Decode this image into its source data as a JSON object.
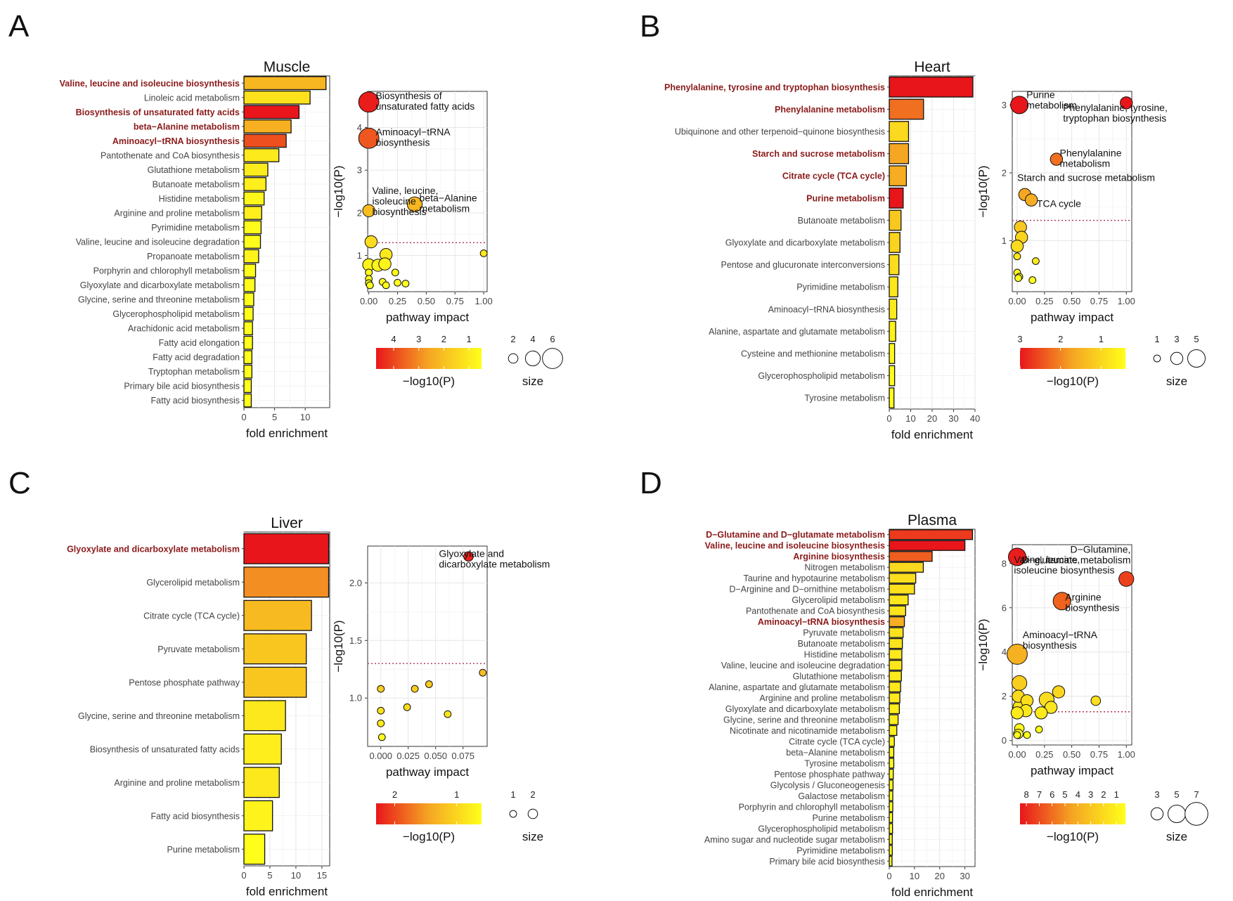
{
  "colors": {
    "low": "#ffff1a",
    "mid": "#f5a623",
    "high": "#e8161b",
    "threshold": "#b03050",
    "highlight_text": "#8b1a1a"
  },
  "chart_data": [
    {
      "panel": "A",
      "type": "bar",
      "title": "Muscle",
      "xlabel": "fold enrichment",
      "xlim": [
        0,
        14
      ],
      "xticks": [
        0,
        5,
        10
      ],
      "categories": [
        "Valine, leucine and isoleucine biosynthesis",
        "Linoleic acid metabolism",
        "Biosynthesis of unsaturated fatty acids",
        "beta−Alanine metabolism",
        "Aminoacyl−tRNA biosynthesis",
        "Pantothenate and CoA biosynthesis",
        "Glutathione metabolism",
        "Butanoate metabolism",
        "Histidine metabolism",
        "Arginine and proline metabolism",
        "Pyrimidine metabolism",
        "Valine, leucine and isoleucine degradation",
        "Propanoate metabolism",
        "Porphyrin and chlorophyll metabolism",
        "Glyoxylate and dicarboxylate metabolism",
        "Glycine, serine and threonine metabolism",
        "Glycerophospholipid metabolism",
        "Arachidonic acid metabolism",
        "Fatty acid elongation",
        "Fatty acid degradation",
        "Tryptophan metabolism",
        "Primary bile acid biosynthesis",
        "Fatty acid biosynthesis"
      ],
      "values": [
        13.4,
        10.8,
        9.0,
        7.7,
        6.9,
        5.7,
        3.9,
        3.6,
        3.3,
        2.9,
        2.8,
        2.7,
        2.4,
        1.9,
        1.8,
        1.6,
        1.5,
        1.4,
        1.4,
        1.3,
        1.3,
        1.2,
        1.2
      ],
      "neglogp": [
        2.05,
        1.0,
        4.6,
        2.2,
        3.75,
        0.8,
        0.75,
        0.7,
        0.5,
        0.7,
        0.4,
        0.35,
        0.6,
        0.35,
        0.4,
        0.35,
        0.35,
        0.3,
        0.3,
        0.3,
        0.3,
        0.3,
        0.3
      ],
      "highlighted": [
        0,
        2,
        3,
        4
      ],
      "bubble": {
        "xlabel": "pathway impact",
        "ylabel": "−log10(P)",
        "xlim": [
          -0.01,
          1.03
        ],
        "ylim": [
          0.15,
          4.85
        ],
        "xticks": [
          0,
          0.25,
          0.5,
          0.75,
          1
        ],
        "xtick_labels": [
          "0.00",
          "0.25",
          "0.50",
          "0.75",
          "1.00"
        ],
        "yticks": [
          1,
          2,
          3,
          4
        ],
        "threshold": 1.3,
        "points": [
          {
            "x": 0.0,
            "y": 4.6,
            "size": 6,
            "p": 4.6
          },
          {
            "x": 0.0,
            "y": 3.75,
            "size": 6,
            "p": 3.75
          },
          {
            "x": 0.0,
            "y": 2.05,
            "size": 3,
            "p": 2.05
          },
          {
            "x": 0.4,
            "y": 2.2,
            "size": 4,
            "p": 2.2
          },
          {
            "x": 0.02,
            "y": 1.32,
            "size": 3,
            "p": 1.32
          },
          {
            "x": 1.0,
            "y": 1.05,
            "size": 1,
            "p": 1.05
          },
          {
            "x": 0.15,
            "y": 1.02,
            "size": 3,
            "p": 1.02
          },
          {
            "x": 0.0,
            "y": 0.78,
            "size": 3,
            "p": 0.78
          },
          {
            "x": 0.08,
            "y": 0.77,
            "size": 3,
            "p": 0.77
          },
          {
            "x": 0.14,
            "y": 0.8,
            "size": 3,
            "p": 0.8
          },
          {
            "x": 0.23,
            "y": 0.6,
            "size": 1,
            "p": 0.6
          },
          {
            "x": 0.0,
            "y": 0.6,
            "size": 1,
            "p": 0.6
          },
          {
            "x": 0.0,
            "y": 0.45,
            "size": 1,
            "p": 0.45
          },
          {
            "x": 0.0,
            "y": 0.35,
            "size": 1,
            "p": 0.35
          },
          {
            "x": 0.01,
            "y": 0.3,
            "size": 1,
            "p": 0.3
          },
          {
            "x": 0.12,
            "y": 0.38,
            "size": 1,
            "p": 0.38
          },
          {
            "x": 0.15,
            "y": 0.3,
            "size": 1,
            "p": 0.3
          },
          {
            "x": 0.25,
            "y": 0.36,
            "size": 1,
            "p": 0.36
          },
          {
            "x": 0.32,
            "y": 0.34,
            "size": 1,
            "p": 0.34
          }
        ],
        "annotations": [
          {
            "text": "Biosynthesis of\nunsaturated fatty acids",
            "x": 0.06,
            "y": 4.6
          },
          {
            "text": "Aminoacyl−tRNA\nbiosynthesis",
            "x": 0.06,
            "y": 3.75
          },
          {
            "text": "Valine, leucine,\nisoleucine\nbiosynthesis",
            "x": 0.03,
            "y": 2.38
          },
          {
            "text": "beta−Alanine\nmetabolism",
            "x": 0.44,
            "y": 2.2
          }
        ],
        "color_legend": {
          "title": "−log10(P)",
          "min": 0.5,
          "max": 4.7,
          "ticks": [
            4,
            3,
            2,
            1
          ]
        },
        "size_legend": {
          "title": "size",
          "values": [
            2,
            4,
            6
          ]
        }
      }
    },
    {
      "panel": "B",
      "type": "bar",
      "title": "Heart",
      "xlabel": "fold enrichment",
      "xlim": [
        0,
        40
      ],
      "xticks": [
        0,
        10,
        20,
        30,
        40
      ],
      "categories": [
        "Phenylalanine, tyrosine and tryptophan biosynthesis",
        "Phenylalanine metabolism",
        "Ubiquinone and other terpenoid−quinone biosynthesis",
        "Starch and sucrose metabolism",
        "Citrate cycle (TCA cycle)",
        "Purine metabolism",
        "Butanoate metabolism",
        "Glyoxylate and dicarboxylate metabolism",
        "Pentose and glucuronate interconversions",
        "Pyrimidine metabolism",
        "Aminoacyl−tRNA biosynthesis",
        "Alanine, aspartate and glutamate metabolism",
        "Cysteine and methionine metabolism",
        "Glycerophospholipid metabolism",
        "Tyrosine metabolism"
      ],
      "values": [
        39,
        16,
        9,
        9,
        8,
        6.5,
        5.5,
        5,
        4.5,
        4,
        3.5,
        3,
        2.5,
        2.5,
        2.2
      ],
      "neglogp": [
        3.0,
        2.2,
        0.95,
        1.68,
        1.6,
        3.0,
        1.2,
        1.05,
        0.9,
        0.75,
        0.7,
        0.6,
        0.5,
        0.45,
        0.4
      ],
      "highlighted": [
        0,
        1,
        3,
        4,
        5
      ],
      "bubble": {
        "xlabel": "pathway impact",
        "ylabel": "−log10(P)",
        "xlim": [
          -0.045,
          1.05
        ],
        "ylim": [
          0.25,
          3.2
        ],
        "xticks": [
          0,
          0.25,
          0.5,
          0.75,
          1
        ],
        "xtick_labels": [
          "0.00",
          "0.25",
          "0.50",
          "0.75",
          "1.00"
        ],
        "yticks": [
          1,
          2,
          3
        ],
        "threshold": 1.3,
        "points": [
          {
            "x": 0.02,
            "y": 3.0,
            "size": 5,
            "p": 3.0
          },
          {
            "x": 1.0,
            "y": 3.03,
            "size": 3,
            "p": 3.03
          },
          {
            "x": 0.36,
            "y": 2.2,
            "size": 3,
            "p": 2.2
          },
          {
            "x": 0.07,
            "y": 1.68,
            "size": 3,
            "p": 1.68
          },
          {
            "x": 0.13,
            "y": 1.6,
            "size": 3,
            "p": 1.6
          },
          {
            "x": 0.03,
            "y": 1.2,
            "size": 3,
            "p": 1.2
          },
          {
            "x": 0.04,
            "y": 1.05,
            "size": 3,
            "p": 1.05
          },
          {
            "x": 0.0,
            "y": 0.92,
            "size": 3,
            "p": 0.92
          },
          {
            "x": 0.0,
            "y": 0.77,
            "size": 1,
            "p": 0.77
          },
          {
            "x": 0.17,
            "y": 0.7,
            "size": 1,
            "p": 0.7
          },
          {
            "x": 0.0,
            "y": 0.53,
            "size": 1,
            "p": 0.53
          },
          {
            "x": 0.02,
            "y": 0.47,
            "size": 1,
            "p": 0.47
          },
          {
            "x": 0.01,
            "y": 0.45,
            "size": 1,
            "p": 0.45
          },
          {
            "x": 0.14,
            "y": 0.42,
            "size": 1,
            "p": 0.42
          }
        ],
        "annotations": [
          {
            "text": "Purine\nmetabolism",
            "x": 0.085,
            "y": 3.06
          },
          {
            "text": "Phenylalanine, tyrosine,\ntryptophan biosynthesis",
            "x": 0.42,
            "y": 2.87
          },
          {
            "text": "Phenylalanine\nmetabolism",
            "x": 0.39,
            "y": 2.2
          },
          {
            "text": "Starch and sucrose metabolism",
            "x": 0.0,
            "y": 1.93
          },
          {
            "text": "TCA cycle",
            "x": 0.18,
            "y": 1.55
          }
        ],
        "color_legend": {
          "title": "−log10(P)",
          "min": 0.4,
          "max": 3.0,
          "ticks": [
            3,
            2,
            1
          ]
        },
        "size_legend": {
          "title": "size",
          "values": [
            1,
            3,
            5
          ]
        }
      }
    },
    {
      "panel": "C",
      "type": "bar",
      "title": "Liver",
      "xlabel": "fold enrichment",
      "xlim": [
        0,
        16.5
      ],
      "xticks": [
        0,
        5,
        10,
        15
      ],
      "categories": [
        "Glyoxylate and dicarboxylate metabolism",
        "Glycerolipid metabolism",
        "Citrate cycle (TCA cycle)",
        "Pyruvate metabolism",
        "Pentose phosphate pathway",
        "Glycine, serine and threonine metabolism",
        "Biosynthesis of unsaturated fatty acids",
        "Arginine and proline metabolism",
        "Fatty acid biosynthesis",
        "Purine metabolism"
      ],
      "values": [
        16.3,
        16.3,
        13.0,
        12.0,
        12.0,
        8.0,
        7.2,
        6.8,
        5.5,
        4.0
      ],
      "neglogp": [
        2.25,
        1.6,
        1.3,
        1.2,
        1.2,
        0.9,
        0.85,
        0.9,
        0.8,
        0.7
      ],
      "highlighted": [
        0
      ],
      "bubble": {
        "xlabel": "pathway impact",
        "ylabel": "−log10(P)",
        "xlim": [
          -0.012,
          0.097
        ],
        "ylim": [
          0.58,
          2.32
        ],
        "xticks": [
          0,
          0.025,
          0.05,
          0.075
        ],
        "xtick_labels": [
          "0.000",
          "0.025",
          "0.050",
          "0.075"
        ],
        "yticks": [
          1.0,
          1.5,
          2.0
        ],
        "ytick_labels": [
          "1.0",
          "1.5",
          "2.0"
        ],
        "threshold": 1.3,
        "points": [
          {
            "x": 0.08,
            "y": 2.23,
            "size": 2,
            "p": 2.23
          },
          {
            "x": 0.093,
            "y": 1.22,
            "size": 1,
            "p": 1.22
          },
          {
            "x": 0.044,
            "y": 1.12,
            "size": 1,
            "p": 1.12
          },
          {
            "x": 0.031,
            "y": 1.08,
            "size": 1,
            "p": 1.08
          },
          {
            "x": 0.0,
            "y": 1.08,
            "size": 1,
            "p": 1.08
          },
          {
            "x": 0.024,
            "y": 0.92,
            "size": 1,
            "p": 0.92
          },
          {
            "x": 0.0,
            "y": 0.89,
            "size": 1,
            "p": 0.89
          },
          {
            "x": 0.061,
            "y": 0.86,
            "size": 1,
            "p": 0.86
          },
          {
            "x": 0.0,
            "y": 0.78,
            "size": 1,
            "p": 0.78
          },
          {
            "x": 0.001,
            "y": 0.66,
            "size": 1,
            "p": 0.66
          }
        ],
        "annotations": [
          {
            "text": "Glyoxylate and\ndicarboxylate metabolism",
            "x": 0.053,
            "y": 2.2
          }
        ],
        "color_legend": {
          "title": "−log10(P)",
          "min": 0.6,
          "max": 2.3,
          "ticks": [
            2,
            1
          ]
        },
        "size_legend": {
          "title": "size",
          "values": [
            1,
            2
          ]
        }
      }
    },
    {
      "panel": "D",
      "type": "bar",
      "title": "Plasma",
      "xlabel": "fold enrichment",
      "xlim": [
        0,
        34
      ],
      "xticks": [
        0,
        10,
        20,
        30
      ],
      "categories": [
        "D−Glutamine and D−glutamate metabolism",
        "Valine, leucine and isoleucine biosynthesis",
        "Arginine biosynthesis",
        "Nitrogen metabolism",
        "Taurine and hypotaurine metabolism",
        "D−Arginine and D−ornithine metabolism",
        "Glycerolipid metabolism",
        "Pantothenate and CoA biosynthesis",
        "Aminoacyl−tRNA biosynthesis",
        "Pyruvate metabolism",
        "Butanoate metabolism",
        "Histidine metabolism",
        "Valine, leucine and isoleucine degradation",
        "Glutathione metabolism",
        "Alanine, aspartate and glutamate metabolism",
        "Arginine and proline metabolism",
        "Glyoxylate and dicarboxylate metabolism",
        "Glycine, serine and threonine metabolism",
        "Nicotinate and nicotinamide metabolism",
        "Citrate cycle (TCA cycle)",
        "beta−Alanine metabolism",
        "Tyrosine metabolism",
        "Pentose phosphate pathway",
        "Glycolysis / Gluconeogenesis",
        "Galactose metabolism",
        "Porphyrin and chlorophyll metabolism",
        "Purine metabolism",
        "Glycerophospholipid metabolism",
        "Amino sugar and nucleotide sugar metabolism",
        "Pyrimidine metabolism",
        "Primary bile acid biosynthesis"
      ],
      "values": [
        33,
        30,
        17,
        13.5,
        10.5,
        10,
        7.5,
        6.5,
        6,
        5.5,
        5.2,
        5,
        5,
        4.8,
        4.5,
        4.2,
        4.0,
        3.5,
        3.0,
        2.0,
        1.8,
        1.8,
        1.6,
        1.5,
        1.4,
        1.4,
        1.3,
        1.3,
        1.2,
        1.2,
        1.1
      ],
      "neglogp": [
        7.3,
        8.3,
        6.3,
        2.0,
        1.8,
        1.7,
        1.4,
        1.5,
        3.9,
        1.6,
        1.5,
        1.3,
        1.4,
        1.3,
        1.4,
        1.3,
        1.2,
        1.1,
        1.0,
        0.8,
        0.6,
        0.6,
        0.5,
        0.45,
        0.4,
        0.4,
        0.4,
        0.35,
        0.35,
        0.3,
        0.3
      ],
      "highlighted": [
        0,
        1,
        2,
        8
      ],
      "bubble": {
        "xlabel": "pathway impact",
        "ylabel": "−log10(P)",
        "xlim": [
          -0.045,
          1.05
        ],
        "ylim": [
          -0.2,
          8.85
        ],
        "xticks": [
          0,
          0.25,
          0.5,
          0.75,
          1
        ],
        "xtick_labels": [
          "0.00",
          "0.25",
          "0.50",
          "0.75",
          "1.00"
        ],
        "yticks": [
          0,
          2,
          4,
          6,
          8
        ],
        "threshold": 1.3,
        "points": [
          {
            "x": 0.0,
            "y": 8.3,
            "size": 5,
            "p": 8.3
          },
          {
            "x": 1.0,
            "y": 7.3,
            "size": 4,
            "p": 7.3
          },
          {
            "x": 0.41,
            "y": 6.3,
            "size": 5,
            "p": 6.3
          },
          {
            "x": 0.0,
            "y": 3.9,
            "size": 6,
            "p": 3.9
          },
          {
            "x": 0.02,
            "y": 2.6,
            "size": 4,
            "p": 2.6
          },
          {
            "x": 0.38,
            "y": 2.2,
            "size": 3,
            "p": 2.2
          },
          {
            "x": 0.27,
            "y": 1.85,
            "size": 4,
            "p": 1.85
          },
          {
            "x": 0.72,
            "y": 1.8,
            "size": 2,
            "p": 1.8
          },
          {
            "x": 0.01,
            "y": 2.0,
            "size": 3,
            "p": 2.0
          },
          {
            "x": 0.09,
            "y": 1.8,
            "size": 3,
            "p": 1.8
          },
          {
            "x": 0.31,
            "y": 1.5,
            "size": 3,
            "p": 1.5
          },
          {
            "x": 0.03,
            "y": 1.5,
            "size": 4,
            "p": 1.5
          },
          {
            "x": 0.08,
            "y": 1.35,
            "size": 3,
            "p": 1.35
          },
          {
            "x": 0.22,
            "y": 1.25,
            "size": 3,
            "p": 1.25
          },
          {
            "x": 0.0,
            "y": 1.25,
            "size": 3,
            "p": 1.25
          },
          {
            "x": 0.02,
            "y": 0.55,
            "size": 2,
            "p": 0.55
          },
          {
            "x": 0.01,
            "y": 0.3,
            "size": 2,
            "p": 0.3
          },
          {
            "x": 0.0,
            "y": 0.25,
            "size": 1,
            "p": 0.25
          },
          {
            "x": 0.2,
            "y": 0.5,
            "size": 1,
            "p": 0.5
          },
          {
            "x": 0.09,
            "y": 0.25,
            "size": 1,
            "p": 0.25
          }
        ],
        "annotations": [
          {
            "text": "D−Glutamine,\nD−glutamate metabolism",
            "x": 1.04,
            "y": 8.35,
            "anchor": "end"
          },
          {
            "text": "Valine, leucine,\nisoleucine biosynthesis",
            "x": -0.03,
            "y": 7.9
          },
          {
            "text": "Arginine\nbiosynthesis",
            "x": 0.44,
            "y": 6.2
          },
          {
            "text": "Aminoacyl−tRNA\nbiosynthesis",
            "x": 0.05,
            "y": 4.5
          }
        ],
        "color_legend": {
          "title": "−log10(P)",
          "min": 0.3,
          "max": 8.5,
          "ticks": [
            8,
            7,
            6,
            5,
            4,
            3,
            2,
            1
          ]
        },
        "size_legend": {
          "title": "size",
          "values": [
            3,
            5,
            7
          ]
        }
      }
    }
  ]
}
